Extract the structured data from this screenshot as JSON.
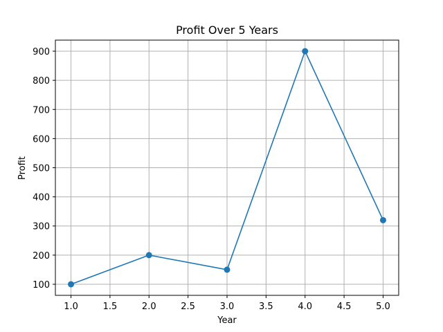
{
  "chart_data": {
    "type": "line",
    "title": "Profit Over 5 Years",
    "xlabel": "Year",
    "ylabel": "Profit",
    "x": [
      1,
      2,
      3,
      4,
      5
    ],
    "series": [
      {
        "values": [
          100,
          200,
          150,
          900,
          320
        ],
        "color": "#1f77b4",
        "marker": "circle"
      }
    ],
    "xlim": [
      0.8,
      5.2
    ],
    "ylim": [
      62,
      938
    ],
    "xticks": [
      1.0,
      1.5,
      2.0,
      2.5,
      3.0,
      3.5,
      4.0,
      4.5,
      5.0
    ],
    "xtick_labels": [
      "1.0",
      "1.5",
      "2.0",
      "2.5",
      "3.0",
      "3.5",
      "4.0",
      "4.5",
      "5.0"
    ],
    "yticks": [
      100,
      200,
      300,
      400,
      500,
      600,
      700,
      800,
      900
    ],
    "ytick_labels": [
      "100",
      "200",
      "300",
      "400",
      "500",
      "600",
      "700",
      "800",
      "900"
    ],
    "grid": true,
    "grid_color": "#b0b0b0",
    "line_color": "#1f77b4"
  }
}
